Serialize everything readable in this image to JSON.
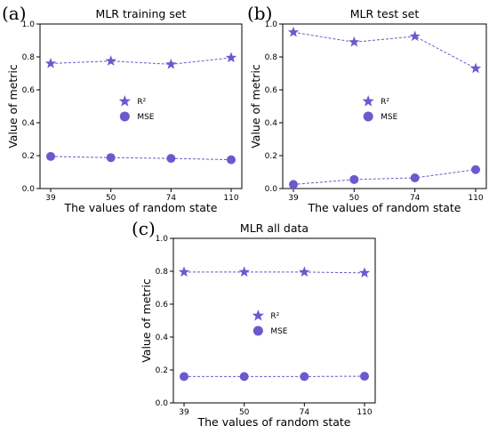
{
  "colors": {
    "series": "#6a5acd",
    "axis": "#000000"
  },
  "chart_data": [
    {
      "type": "line",
      "panel_label": "(a)",
      "title": "MLR training set",
      "xlabel": "The values of random state",
      "ylabel": "Value of metric",
      "categories": [
        "39",
        "50",
        "74",
        "110"
      ],
      "ylim": [
        0,
        1.0
      ],
      "yticks": [
        "0.0",
        "0.2",
        "0.4",
        "0.6",
        "0.8",
        "1.0"
      ],
      "legend_position": "center",
      "grid": false,
      "series": [
        {
          "name": "R²",
          "marker": "star",
          "values": [
            0.76,
            0.775,
            0.755,
            0.795
          ]
        },
        {
          "name": "MSE",
          "marker": "circle",
          "values": [
            0.195,
            0.188,
            0.183,
            0.175
          ]
        }
      ]
    },
    {
      "type": "line",
      "panel_label": "(b)",
      "title": "MLR test set",
      "xlabel": "The values of random state",
      "ylabel": "Value of metric",
      "categories": [
        "39",
        "50",
        "74",
        "110"
      ],
      "ylim": [
        0,
        1.0
      ],
      "yticks": [
        "0.0",
        "0.2",
        "0.4",
        "0.6",
        "0.8",
        "1.0"
      ],
      "legend_position": "center",
      "grid": false,
      "series": [
        {
          "name": "R²",
          "marker": "star",
          "values": [
            0.95,
            0.89,
            0.925,
            0.73
          ]
        },
        {
          "name": "MSE",
          "marker": "circle",
          "values": [
            0.025,
            0.055,
            0.065,
            0.115
          ]
        }
      ]
    },
    {
      "type": "line",
      "panel_label": "(c)",
      "title": "MLR all data",
      "xlabel": "The values of random state",
      "ylabel": "Value of metric",
      "categories": [
        "39",
        "50",
        "74",
        "110"
      ],
      "ylim": [
        0,
        1.0
      ],
      "yticks": [
        "0.0",
        "0.2",
        "0.4",
        "0.6",
        "0.8",
        "1.0"
      ],
      "legend_position": "center",
      "grid": false,
      "series": [
        {
          "name": "R²",
          "marker": "star",
          "values": [
            0.795,
            0.795,
            0.795,
            0.79
          ]
        },
        {
          "name": "MSE",
          "marker": "circle",
          "values": [
            0.16,
            0.16,
            0.16,
            0.162
          ]
        }
      ]
    }
  ]
}
